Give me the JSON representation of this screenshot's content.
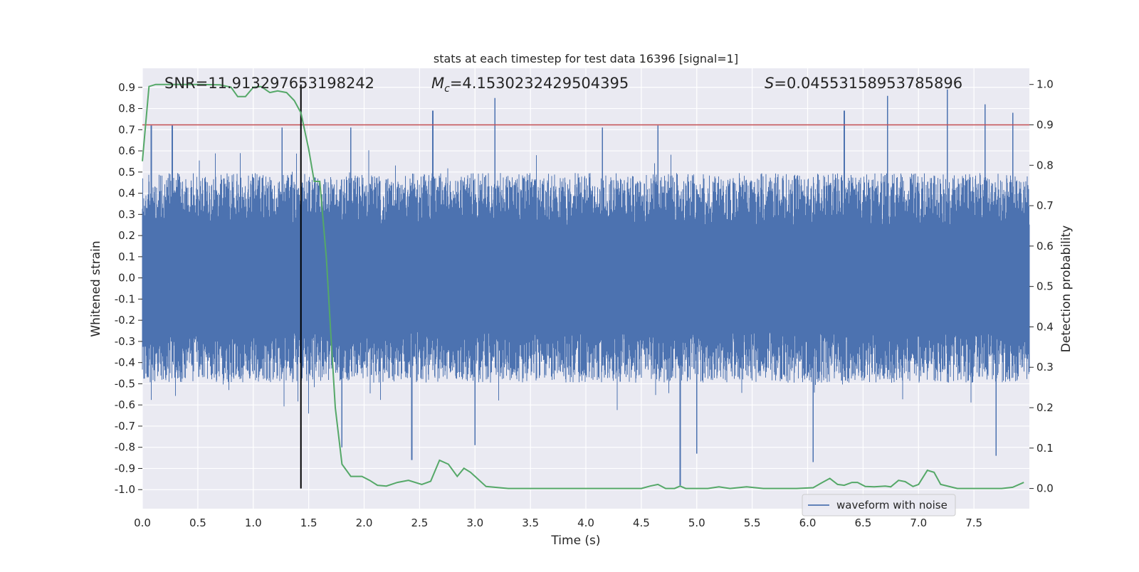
{
  "chart_data": {
    "type": "line",
    "title": "stats at each timestep for test data 16396 [signal=1]",
    "xlabel": "Time (s)",
    "ylabel_left": "Whitened strain",
    "ylabel_right": "Detection probability",
    "xlim": [
      0.0,
      8.0
    ],
    "ylim_left": [
      -1.09,
      0.99
    ],
    "ylim_right": [
      -0.05,
      1.04
    ],
    "x_ticks": [
      "0.0",
      "0.5",
      "1.0",
      "1.5",
      "2.0",
      "2.5",
      "3.0",
      "3.5",
      "4.0",
      "4.5",
      "5.0",
      "5.5",
      "6.0",
      "6.5",
      "7.0",
      "7.5"
    ],
    "y_left_ticks": [
      "0.9",
      "0.8",
      "0.7",
      "0.6",
      "0.5",
      "0.4",
      "0.3",
      "0.2",
      "0.1",
      "0.0",
      "-0.1",
      "-0.2",
      "-0.3",
      "-0.4",
      "-0.5",
      "-0.6",
      "-0.7",
      "-0.8",
      "-0.9",
      "-1.0"
    ],
    "y_right_ticks": [
      "1.0",
      "0.9",
      "0.8",
      "0.7",
      "0.6",
      "0.5",
      "0.4",
      "0.3",
      "0.2",
      "0.1",
      "0.0"
    ],
    "grid": true,
    "legend_position": "lower-right",
    "annotations": {
      "snr_text": "SNR=11.913297653198242",
      "mc_symbol": "M",
      "mc_subscript": "c",
      "mc_value": "=4.1530232429504395",
      "s_symbol": "S",
      "s_value": "=0.04553158953785896"
    },
    "threshold": 0.9,
    "marker_time": 1.43,
    "waveform": {
      "name": "waveform with noise",
      "color": "#4c72b0",
      "envelope_typical": 0.45,
      "peaks": [
        {
          "t": 0.08,
          "v": 0.72
        },
        {
          "t": 0.27,
          "v": 0.72
        },
        {
          "t": 1.26,
          "v": 0.71
        },
        {
          "t": 1.88,
          "v": 0.71
        },
        {
          "t": 2.62,
          "v": 0.79
        },
        {
          "t": 3.18,
          "v": 0.85
        },
        {
          "t": 4.15,
          "v": 0.71
        },
        {
          "t": 4.65,
          "v": 0.72
        },
        {
          "t": 6.33,
          "v": 0.79
        },
        {
          "t": 6.72,
          "v": 0.86
        },
        {
          "t": 7.26,
          "v": 0.89
        },
        {
          "t": 7.6,
          "v": 0.82
        },
        {
          "t": 7.85,
          "v": 0.78
        },
        {
          "t": 4.85,
          "v": -0.98
        },
        {
          "t": 1.8,
          "v": -0.8
        },
        {
          "t": 2.43,
          "v": -0.86
        },
        {
          "t": 6.05,
          "v": -0.87
        },
        {
          "t": 7.7,
          "v": -0.84
        },
        {
          "t": 3.0,
          "v": -0.79
        },
        {
          "t": 5.0,
          "v": -0.83
        }
      ]
    },
    "probability": {
      "color": "#55a868",
      "x": [
        0.0,
        0.06,
        0.12,
        0.3,
        0.5,
        0.7,
        0.8,
        0.86,
        0.93,
        1.0,
        1.07,
        1.15,
        1.22,
        1.3,
        1.37,
        1.43,
        1.5,
        1.55,
        1.6,
        1.66,
        1.7,
        1.74,
        1.8,
        1.88,
        1.98,
        2.05,
        2.12,
        2.2,
        2.3,
        2.4,
        2.52,
        2.6,
        2.68,
        2.76,
        2.84,
        2.9,
        2.96,
        3.0,
        3.1,
        3.3,
        3.6,
        3.9,
        4.2,
        4.5,
        4.58,
        4.65,
        4.72,
        4.8,
        4.85,
        4.9,
        5.0,
        5.1,
        5.2,
        5.3,
        5.45,
        5.6,
        5.75,
        5.9,
        6.05,
        6.12,
        6.2,
        6.27,
        6.33,
        6.4,
        6.45,
        6.52,
        6.6,
        6.7,
        6.75,
        6.82,
        6.88,
        6.95,
        7.0,
        7.08,
        7.14,
        7.2,
        7.35,
        7.55,
        7.75,
        7.85,
        7.95
      ],
      "y": [
        0.81,
        0.995,
        1.0,
        1.0,
        1.0,
        0.999,
        0.993,
        0.97,
        0.97,
        0.993,
        0.995,
        0.98,
        0.984,
        0.98,
        0.96,
        0.93,
        0.84,
        0.76,
        0.76,
        0.57,
        0.38,
        0.2,
        0.06,
        0.03,
        0.03,
        0.02,
        0.008,
        0.006,
        0.015,
        0.02,
        0.01,
        0.018,
        0.07,
        0.06,
        0.03,
        0.05,
        0.04,
        0.03,
        0.005,
        0.0,
        0.0,
        0.0,
        0.0,
        0.0,
        0.006,
        0.01,
        0.0,
        0.0,
        0.006,
        0.0,
        0.0,
        0.0,
        0.004,
        0.0,
        0.004,
        0.0,
        0.0,
        0.0,
        0.002,
        0.013,
        0.025,
        0.01,
        0.008,
        0.015,
        0.015,
        0.005,
        0.004,
        0.006,
        0.004,
        0.02,
        0.017,
        0.005,
        0.01,
        0.045,
        0.04,
        0.01,
        0.0,
        0.0,
        0.0,
        0.003,
        0.015
      ]
    },
    "threshold_color": "#c44e52",
    "marker_color": "#000000"
  }
}
